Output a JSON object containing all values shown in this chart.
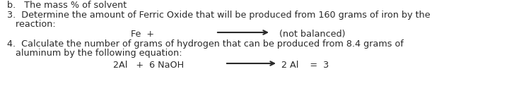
{
  "background_color": "#ffffff",
  "top_text": "b.   The mass % of solvent",
  "item3_label": "3.",
  "item3_text1": "  Determine the amount of Ferric Oxide that will be produced from 160 grams of iron by the",
  "item3_text2": "   reaction:",
  "item3_equation": "Fe  +",
  "item3_eq_note": "(not balanced)",
  "item4_label": "4.",
  "item4_text1": "  Calculate the number of grams of hydrogen that can be produced from 8.4 grams of",
  "item4_text2": "   aluminum by the following equation:",
  "item4_equation": "2Al   +  6 NaOH",
  "item4_eq_right": "2 Al    =  3",
  "font_size": 9.2,
  "text_color": "#2a2a2a",
  "arrow_color": "#2a2a2a"
}
